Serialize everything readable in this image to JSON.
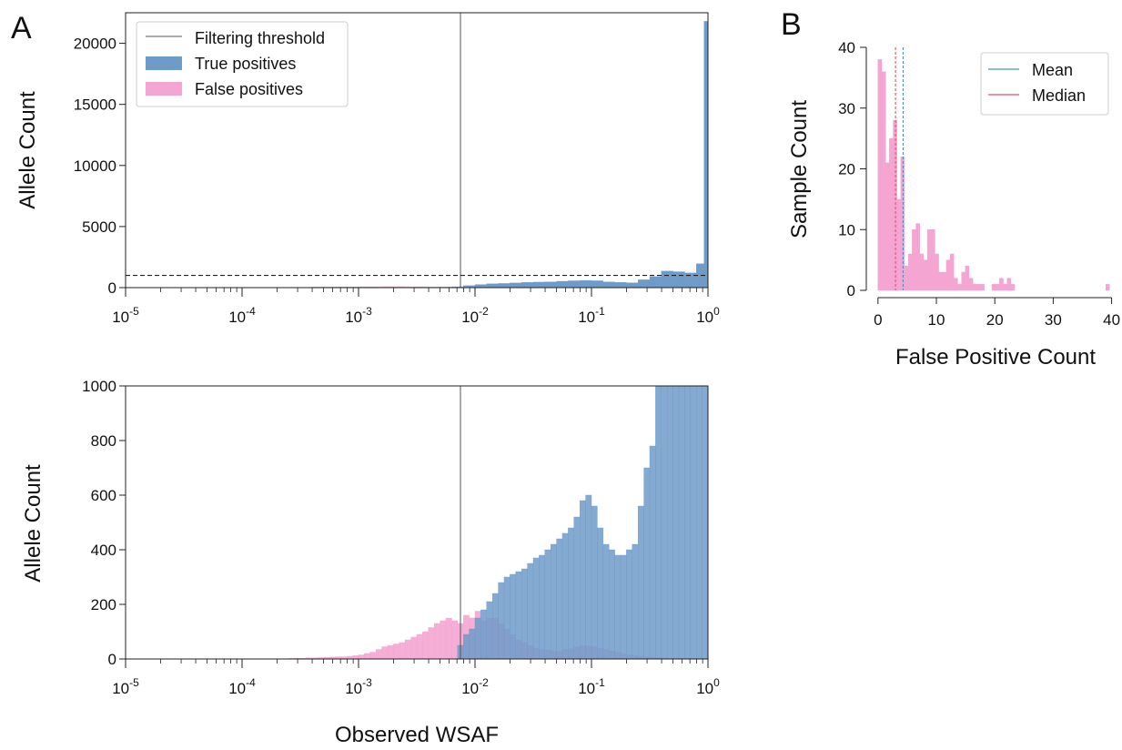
{
  "panel_labels": {
    "a": "A",
    "b": "B"
  },
  "colors": {
    "true_positive": "#6f9bc9",
    "false_positive": "#f4a5d2",
    "threshold": "#555555",
    "mean": "#4f8fc0",
    "median": "#e8506a"
  },
  "chart_data": [
    {
      "id": "A-top",
      "type": "bar",
      "x_scale": "log",
      "xlim": [
        1e-05,
        1
      ],
      "ylim": [
        0,
        22500
      ],
      "xlabel": "",
      "ylabel": "Allele Count",
      "x_tick_labels": [
        "10^-5",
        "10^-4",
        "10^-3",
        "10^-2",
        "10^-1",
        "10^0"
      ],
      "y_ticks": [
        0,
        5000,
        10000,
        15000,
        20000
      ],
      "y_tick_labels": [
        "0",
        "5000",
        "10000",
        "15000",
        "20000"
      ],
      "filtering_threshold_x": 0.0075,
      "dashed_line_y": 1000,
      "legend": {
        "placement": "top-left",
        "entries": [
          "Filtering threshold",
          "True positives",
          "False positives"
        ]
      },
      "series": [
        {
          "name": "True positives",
          "color_key": "true_positive",
          "log10_bin_start": [
            -2.2,
            -2.1,
            -2.0,
            -1.9,
            -1.8,
            -1.7,
            -1.6,
            -1.5,
            -1.4,
            -1.3,
            -1.2,
            -1.1,
            -1.0,
            -0.9,
            -0.8,
            -0.7,
            -0.6,
            -0.5,
            -0.4,
            -0.3,
            -0.2,
            -0.1,
            -0.033
          ],
          "log10_bin_end": [
            -2.1,
            -2.0,
            -1.9,
            -1.8,
            -1.7,
            -1.6,
            -1.5,
            -1.4,
            -1.3,
            -1.2,
            -1.1,
            -1.0,
            -0.9,
            -0.8,
            -0.7,
            -0.6,
            -0.5,
            -0.4,
            -0.3,
            -0.2,
            -0.1,
            -0.033,
            0.0
          ],
          "values": [
            70,
            160,
            250,
            310,
            340,
            380,
            420,
            450,
            470,
            520,
            560,
            590,
            560,
            460,
            420,
            390,
            640,
            900,
            1350,
            1300,
            1200,
            1950,
            21800
          ]
        },
        {
          "name": "False positives",
          "color_key": "false_positive",
          "log10_bin_start": [
            -3.8,
            -3.6,
            -3.4,
            -3.2,
            -3.0,
            -2.8,
            -2.6,
            -2.4,
            -2.2
          ],
          "log10_bin_end": [
            -3.6,
            -3.4,
            -3.2,
            -3.0,
            -2.8,
            -2.6,
            -2.4,
            -2.2,
            -2.0
          ],
          "values": [
            10,
            25,
            45,
            60,
            70,
            80,
            70,
            50,
            35
          ]
        }
      ]
    },
    {
      "id": "A-bottom",
      "type": "bar",
      "x_scale": "log",
      "xlim": [
        1e-05,
        1
      ],
      "ylim": [
        0,
        1000
      ],
      "xlabel": "Observed WSAF",
      "ylabel": "Allele Count",
      "x_tick_labels": [
        "10^-5",
        "10^-4",
        "10^-3",
        "10^-2",
        "10^-1",
        "10^0"
      ],
      "y_ticks": [
        0,
        200,
        400,
        600,
        800,
        1000
      ],
      "y_tick_labels": [
        "0",
        "200",
        "400",
        "600",
        "800",
        "1000"
      ],
      "filtering_threshold_x": 0.0075,
      "log10_bin_start": -5.0,
      "log10_bin_width": 0.05,
      "series": [
        {
          "name": "False positives",
          "color_key": "false_positive",
          "first_bin_index": 28,
          "values": [
            2,
            3,
            3,
            4,
            4,
            5,
            6,
            7,
            8,
            8,
            10,
            12,
            15,
            20,
            25,
            35,
            45,
            50,
            55,
            60,
            70,
            80,
            90,
            100,
            115,
            130,
            140,
            150,
            140,
            130,
            160,
            150,
            175,
            140,
            150,
            150,
            130,
            110,
            90,
            70,
            60,
            50,
            40,
            35,
            32,
            30,
            28,
            35,
            38,
            45,
            50,
            48,
            45,
            40,
            35,
            30,
            25,
            20,
            15,
            12,
            10,
            8,
            6,
            5,
            4,
            3,
            2,
            2,
            2,
            2,
            2,
            2
          ]
        },
        {
          "name": "True positives",
          "color_key": "true_positive",
          "first_bin_index": 57,
          "values": [
            50,
            90,
            110,
            150,
            180,
            210,
            240,
            280,
            300,
            310,
            320,
            330,
            350,
            370,
            380,
            400,
            420,
            440,
            460,
            480,
            520,
            580,
            600,
            560,
            480,
            420,
            400,
            380,
            380,
            400,
            420,
            560,
            700,
            780,
            1000,
            1000,
            1000,
            1000,
            1000,
            1000,
            1000,
            1000,
            1000
          ]
        }
      ]
    },
    {
      "id": "B",
      "type": "bar",
      "xlim": [
        -2,
        41
      ],
      "ylim": [
        0,
        40
      ],
      "xlabel": "False Positive Count",
      "ylabel": "Sample Count",
      "x_ticks": [
        0,
        10,
        20,
        30,
        40
      ],
      "x_tick_labels": [
        "0",
        "10",
        "20",
        "30",
        "40"
      ],
      "y_ticks": [
        0,
        10,
        20,
        30,
        40
      ],
      "y_tick_labels": [
        "0",
        "10",
        "20",
        "30",
        "40"
      ],
      "mean": 4.3,
      "median": 3.0,
      "legend": {
        "placement": "top-right",
        "entries": [
          "Mean",
          "Median"
        ]
      },
      "bin_start": 0,
      "bin_width": 0.65,
      "values": [
        38,
        36,
        21,
        25,
        28,
        15,
        22,
        4,
        6,
        10,
        11,
        6,
        5,
        10,
        10,
        6,
        3,
        3,
        5,
        6,
        2,
        1,
        3,
        4,
        2,
        1,
        1,
        1,
        0,
        0,
        1,
        1,
        2,
        1,
        2,
        1,
        0,
        0,
        0,
        0,
        0,
        0,
        0,
        0,
        0,
        0,
        0,
        0,
        0,
        0,
        0,
        0,
        0,
        0,
        0,
        0,
        0,
        0,
        0,
        0,
        1
      ]
    }
  ]
}
